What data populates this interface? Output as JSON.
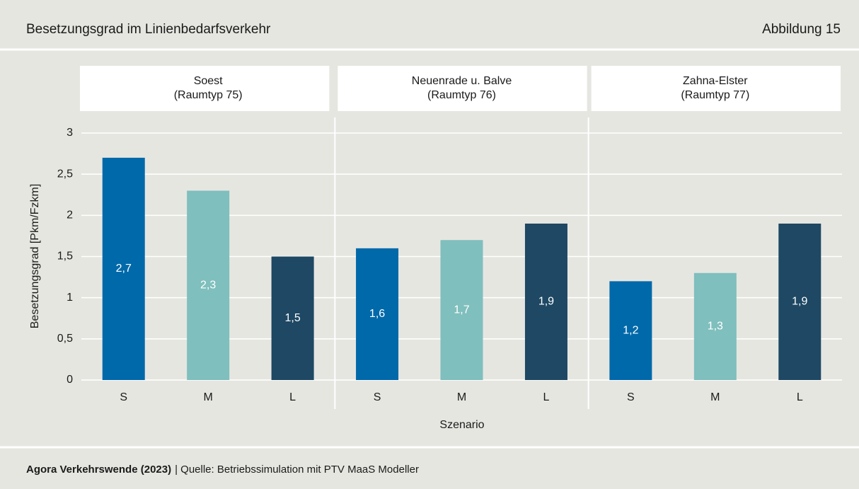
{
  "chart_data": {
    "type": "bar",
    "title": "Besetzungsgrad im Linienbedarfsverkehr",
    "figure_label": "Abbildung 15",
    "ylabel": "Besetzungsgrad  [Pkm/Fzkm]",
    "xlabel": "Szenario",
    "ylim": [
      0,
      3
    ],
    "yticks": [
      0,
      {
        "value": 0.5,
        "label": "0,5"
      },
      1,
      {
        "value": 1.5,
        "label": "1,5"
      },
      2,
      {
        "value": 2.5,
        "label": "2,5"
      },
      3
    ],
    "grid": true,
    "colors": [
      "#0069aa",
      "#7fbfbd",
      "#1e4863"
    ],
    "groups": [
      {
        "name": "Soest",
        "subtitle": "(Raumtyp  75)",
        "categories": [
          "S",
          "M",
          "L"
        ],
        "values": [
          2.7,
          2.3,
          1.5
        ],
        "value_labels": [
          "2,7",
          "2,3",
          "1,5"
        ]
      },
      {
        "name": "Neuenrade u. Balve",
        "subtitle": "(Raumtyp  76)",
        "categories": [
          "S",
          "M",
          "L"
        ],
        "values": [
          1.6,
          1.7,
          1.9
        ],
        "value_labels": [
          "1,6",
          "1,7",
          "1,9"
        ]
      },
      {
        "name": "Zahna-Elster",
        "subtitle": "(Raumtyp 77)",
        "categories": [
          "S",
          "M",
          "L"
        ],
        "values": [
          1.2,
          1.3,
          1.9
        ],
        "value_labels": [
          "1,2",
          "1,3",
          "1,9"
        ]
      }
    ],
    "source": {
      "publisher": "Agora Verkehrswende (2023)",
      "text": "| Quelle: Betriebssimulation mit PTV MaaS Modeller"
    }
  }
}
